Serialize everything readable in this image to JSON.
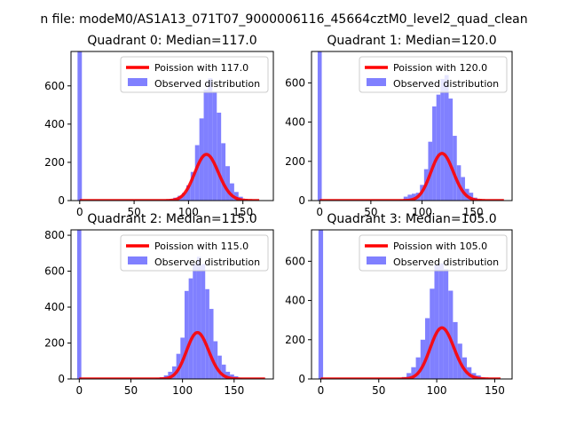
{
  "figure": {
    "suptitle": "n file: modeM0/AS1A13_071T07_9000006116_45664cztM0_level2_quad_clean",
    "colors": {
      "hist": "#8080ff",
      "poisson": "#ff0000",
      "axis": "#000000",
      "legend_border": "#cccccc"
    }
  },
  "chart_data": [
    {
      "type": "histogram",
      "title": "Quadrant 0: Median=117.0",
      "xlim": [
        -8,
        178
      ],
      "ylim": [
        0,
        780
      ],
      "xticks": [
        0,
        50,
        100,
        150
      ],
      "yticks": [
        0,
        200,
        400,
        600
      ],
      "legend": {
        "position": "upper right",
        "entries": [
          "Poission with 117.0",
          "Observed distribution"
        ]
      },
      "poisson_mean": 117.0,
      "poisson_scale": 6550,
      "poisson_x_range": [
        0,
        165
      ],
      "histogram": {
        "bin_width": 4,
        "bins": [
          [
            -2,
            780
          ],
          [
            74,
            2
          ],
          [
            78,
            4
          ],
          [
            82,
            8
          ],
          [
            86,
            15
          ],
          [
            90,
            25
          ],
          [
            94,
            40
          ],
          [
            98,
            80
          ],
          [
            102,
            150
          ],
          [
            106,
            290
          ],
          [
            110,
            430
          ],
          [
            114,
            580
          ],
          [
            118,
            640
          ],
          [
            122,
            570
          ],
          [
            126,
            460
          ],
          [
            130,
            300
          ],
          [
            134,
            180
          ],
          [
            138,
            90
          ],
          [
            142,
            45
          ],
          [
            146,
            20
          ],
          [
            150,
            8
          ]
        ]
      }
    },
    {
      "type": "histogram",
      "title": "Quadrant 1: Median=120.0",
      "xlim": [
        -8,
        188
      ],
      "ylim": [
        0,
        760
      ],
      "xticks": [
        0,
        50,
        100,
        150
      ],
      "yticks": [
        0,
        200,
        400,
        600
      ],
      "legend": {
        "position": "upper right",
        "entries": [
          "Poission with 120.0",
          "Observed distribution"
        ]
      },
      "poisson_mean": 120.0,
      "poisson_scale": 6600,
      "poisson_x_range": [
        0,
        180
      ],
      "histogram": {
        "bin_width": 4,
        "bins": [
          [
            -2,
            760
          ],
          [
            78,
            5
          ],
          [
            82,
            20
          ],
          [
            86,
            30
          ],
          [
            90,
            35
          ],
          [
            94,
            40
          ],
          [
            98,
            80
          ],
          [
            102,
            160
          ],
          [
            106,
            300
          ],
          [
            110,
            480
          ],
          [
            114,
            540
          ],
          [
            118,
            620
          ],
          [
            122,
            640
          ],
          [
            126,
            520
          ],
          [
            130,
            330
          ],
          [
            134,
            180
          ],
          [
            138,
            120
          ],
          [
            142,
            60
          ],
          [
            146,
            40
          ],
          [
            150,
            15
          ],
          [
            154,
            5
          ]
        ]
      }
    },
    {
      "type": "histogram",
      "title": "Quadrant 2: Median=115.0",
      "xlim": [
        -8,
        188
      ],
      "ylim": [
        0,
        830
      ],
      "xticks": [
        0,
        50,
        100,
        150
      ],
      "yticks": [
        0,
        200,
        400,
        600,
        800
      ],
      "legend": {
        "position": "upper right",
        "entries": [
          "Poission with 115.0",
          "Observed distribution"
        ]
      },
      "poisson_mean": 115.0,
      "poisson_scale": 6950,
      "poisson_x_range": [
        0,
        180
      ],
      "histogram": {
        "bin_width": 4,
        "bins": [
          [
            -2,
            830
          ],
          [
            74,
            5
          ],
          [
            78,
            10
          ],
          [
            82,
            20
          ],
          [
            86,
            40
          ],
          [
            90,
            70
          ],
          [
            94,
            140
          ],
          [
            98,
            230
          ],
          [
            102,
            490
          ],
          [
            106,
            560
          ],
          [
            110,
            640
          ],
          [
            114,
            680
          ],
          [
            118,
            640
          ],
          [
            122,
            500
          ],
          [
            126,
            390
          ],
          [
            130,
            210
          ],
          [
            134,
            130
          ],
          [
            138,
            80
          ],
          [
            142,
            40
          ],
          [
            146,
            25
          ],
          [
            150,
            15
          ],
          [
            154,
            5
          ]
        ]
      }
    },
    {
      "type": "histogram",
      "title": "Quadrant 3: Median=105.0",
      "xlim": [
        -8,
        165
      ],
      "ylim": [
        0,
        760
      ],
      "xticks": [
        0,
        50,
        100,
        150
      ],
      "yticks": [
        0,
        200,
        400,
        600
      ],
      "legend": {
        "position": "upper right",
        "entries": [
          "Poission with 105.0",
          "Observed distribution"
        ]
      },
      "poisson_mean": 105.0,
      "poisson_scale": 6700,
      "poisson_x_range": [
        0,
        155
      ],
      "histogram": {
        "bin_width": 4,
        "bins": [
          [
            -2,
            760
          ],
          [
            66,
            4
          ],
          [
            70,
            10
          ],
          [
            74,
            30
          ],
          [
            78,
            60
          ],
          [
            82,
            110
          ],
          [
            86,
            200
          ],
          [
            90,
            310
          ],
          [
            94,
            460
          ],
          [
            98,
            580
          ],
          [
            102,
            590
          ],
          [
            106,
            560
          ],
          [
            110,
            450
          ],
          [
            114,
            290
          ],
          [
            118,
            180
          ],
          [
            122,
            110
          ],
          [
            126,
            60
          ],
          [
            130,
            30
          ],
          [
            134,
            18
          ],
          [
            138,
            8
          ]
        ]
      }
    }
  ]
}
